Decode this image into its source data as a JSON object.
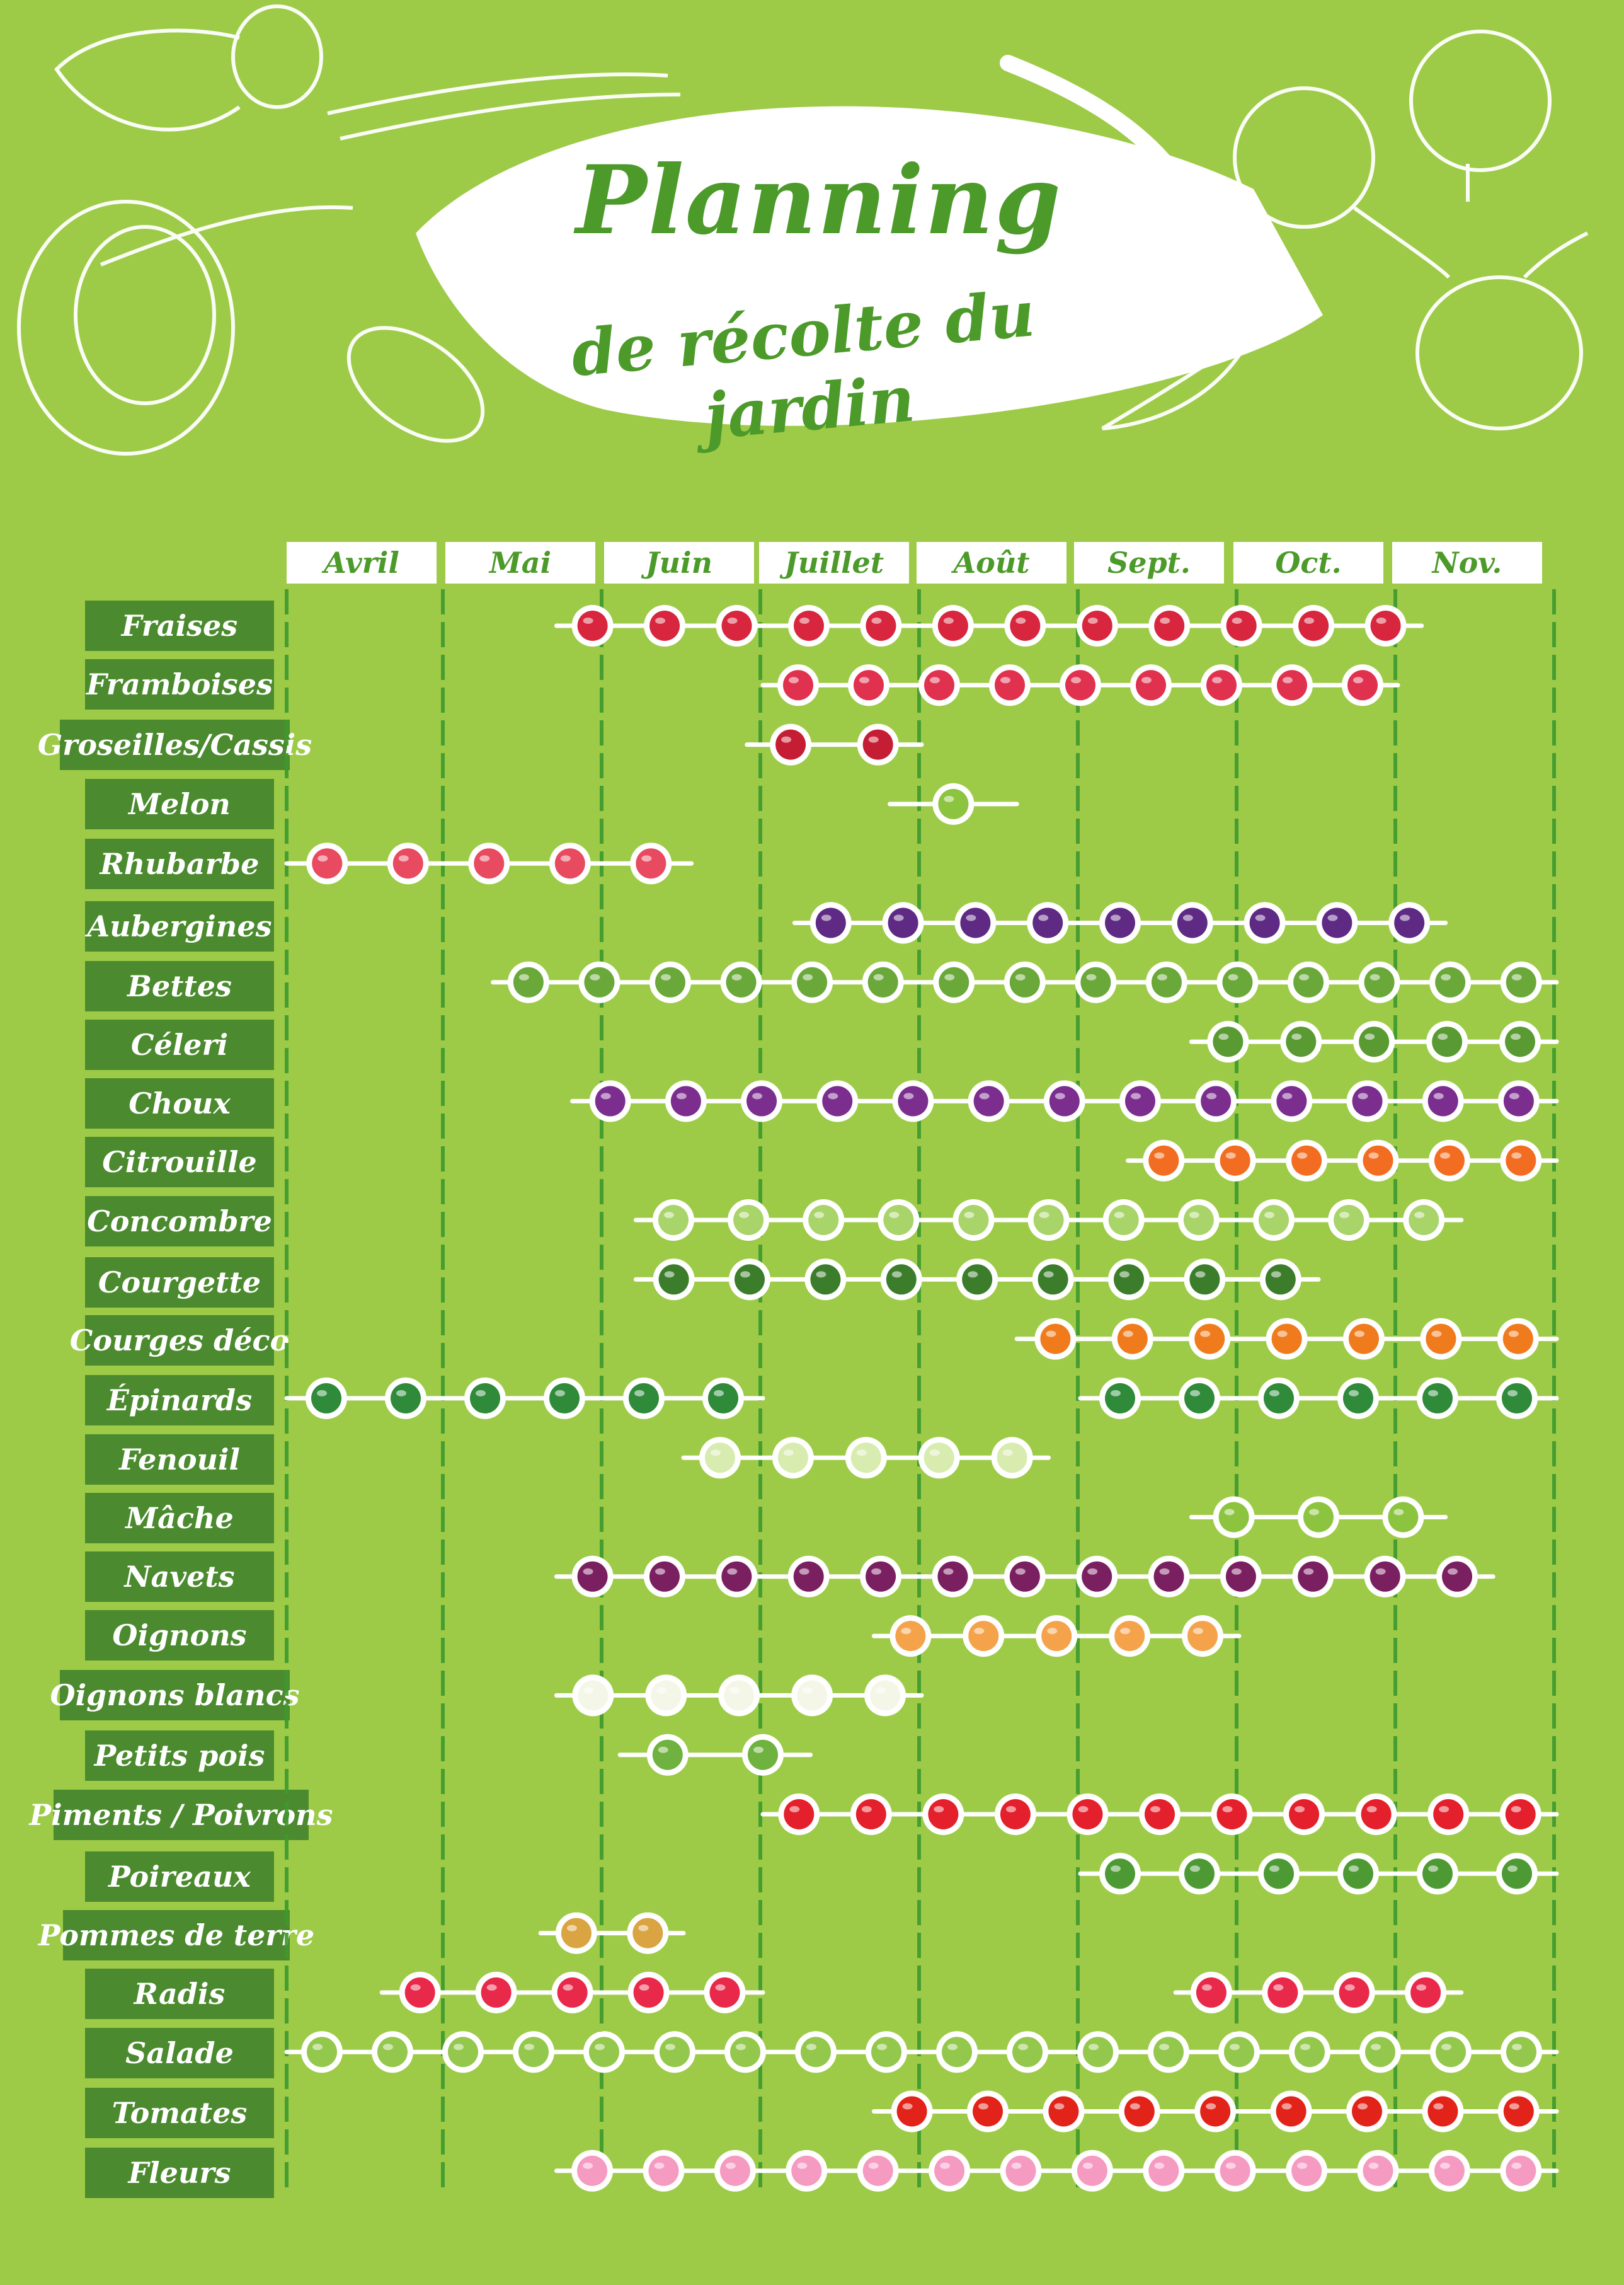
{
  "title": {
    "main": "Planning",
    "sub": "de récolte du jardin"
  },
  "colors": {
    "background": "#9dcb47",
    "dark_green": "#4b8a2e",
    "title_green": "#4c9a2a",
    "white": "#ffffff"
  },
  "months": [
    "Avril",
    "Mai",
    "Juin",
    "Juillet",
    "Août",
    "Sept.",
    "Oct.",
    "Nov."
  ],
  "chart_data": {
    "type": "table",
    "x_unit": "months (0 = early Avril, 8 = end Nov.)",
    "rows": [
      {
        "label": "Fraises",
        "icon": "strawberry-icon",
        "color": "#d7263d",
        "start": 1.7,
        "end": 7.15
      },
      {
        "label": "Framboises",
        "icon": "raspberry-icon",
        "color": "#e0314f",
        "start": 3.0,
        "end": 7.0
      },
      {
        "label": "Groseilles/Cassis",
        "icon": "currant-icon",
        "color": "#c51d34",
        "start": 2.9,
        "end": 4.0
      },
      {
        "label": "Melon",
        "icon": "melon-icon",
        "color": "#8cc43f",
        "start": 3.8,
        "end": 4.6
      },
      {
        "label": "Rhubarbe",
        "icon": "rhubarb-icon",
        "color": "#e84a5f",
        "start": 0.0,
        "end": 2.55
      },
      {
        "label": "Aubergines",
        "icon": "eggplant-icon",
        "color": "#5e2a84",
        "start": 3.2,
        "end": 7.3
      },
      {
        "label": "Bettes",
        "icon": "chard-icon",
        "color": "#6aa83a",
        "start": 1.3,
        "end": 8.0
      },
      {
        "label": "Céleri",
        "icon": "celery-icon",
        "color": "#5a9a33",
        "start": 5.7,
        "end": 8.0
      },
      {
        "label": "Choux",
        "icon": "cabbage-icon",
        "color": "#7b2e8e",
        "start": 1.8,
        "end": 8.0
      },
      {
        "label": "Citrouille",
        "icon": "pumpkin-icon",
        "color": "#f26d21",
        "start": 5.3,
        "end": 8.0
      },
      {
        "label": "Concombre",
        "icon": "cucumber-icon",
        "color": "#a8d46a",
        "start": 2.2,
        "end": 7.4
      },
      {
        "label": "Courgette",
        "icon": "zucchini-icon",
        "color": "#3b7d2a",
        "start": 2.2,
        "end": 6.5
      },
      {
        "label": "Courges déco",
        "icon": "squash-icon",
        "color": "#f07b1d",
        "start": 4.6,
        "end": 8.0
      },
      {
        "label": "Épinards",
        "icon": "spinach-icon",
        "color": "#2f8a3a",
        "start": 0.0,
        "end": 3.0,
        "start2": 5.0,
        "end2": 8.0
      },
      {
        "label": "Fenouil",
        "icon": "fennel-icon",
        "color": "#d8ecb0",
        "start": 2.5,
        "end": 4.8
      },
      {
        "label": "Mâche",
        "icon": "lambs-lettuce-icon",
        "color": "#8cc43f",
        "start": 5.7,
        "end": 7.3
      },
      {
        "label": "Navets",
        "icon": "turnip-icon",
        "color": "#7a1f5f",
        "start": 1.7,
        "end": 7.6
      },
      {
        "label": "Oignons",
        "icon": "onion-icon",
        "color": "#f5a34b",
        "start": 3.7,
        "end": 6.0
      },
      {
        "label": "Oignons blancs",
        "icon": "white-onion-icon",
        "color": "#f4f7e8",
        "start": 1.7,
        "end": 4.0
      },
      {
        "label": "Petits pois",
        "icon": "peas-icon",
        "color": "#6fb23f",
        "start": 2.1,
        "end": 3.3
      },
      {
        "label": "Piments / Poivrons",
        "icon": "pepper-icon",
        "color": "#e3202b",
        "start": 3.0,
        "end": 8.0
      },
      {
        "label": "Poireaux",
        "icon": "leek-icon",
        "color": "#4d9a34",
        "start": 5.0,
        "end": 8.0
      },
      {
        "label": "Pommes de terre",
        "icon": "potato-icon",
        "color": "#d9a441",
        "start": 1.6,
        "end": 2.5
      },
      {
        "label": "Radis",
        "icon": "radish-icon",
        "color": "#e8294a",
        "start": 0.6,
        "end": 3.0,
        "start2": 5.6,
        "end2": 7.4
      },
      {
        "label": "Salade",
        "icon": "lettuce-icon",
        "color": "#93c84c",
        "start": 0.0,
        "end": 8.0
      },
      {
        "label": "Tomates",
        "icon": "tomato-icon",
        "color": "#e2231a",
        "start": 3.7,
        "end": 8.0
      },
      {
        "label": "Fleurs",
        "icon": "flower-icon",
        "color": "#f59ac1",
        "start": 1.7,
        "end": 8.0
      }
    ]
  }
}
